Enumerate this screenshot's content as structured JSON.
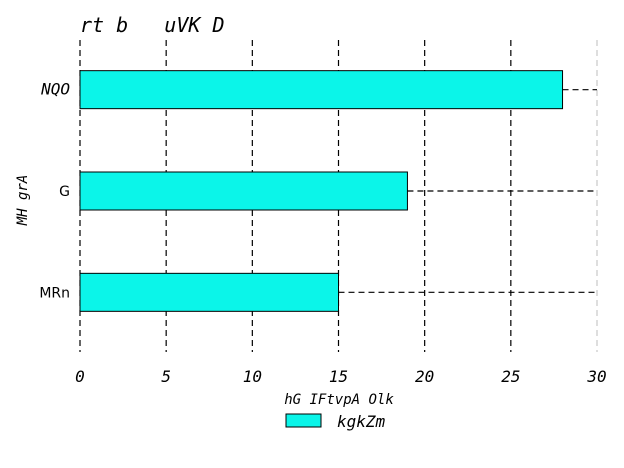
{
  "chart_data": {
    "type": "bar",
    "orientation": "horizontal",
    "title": "rt b   uVK D",
    "xlabel": "hG IFtvpA Olk",
    "ylabel": "MH grA",
    "categories": [
      "NQO",
      "G",
      "MRn"
    ],
    "series": [
      {
        "name": "kgkZm",
        "values": [
          28,
          19,
          15
        ]
      }
    ],
    "xlim": [
      0,
      30
    ],
    "xticks": [
      "0",
      "5",
      "10",
      "15",
      "20",
      "25",
      "30"
    ],
    "grid": true,
    "grid_style": "dashed",
    "legend_position": "bottom-center",
    "colors": {
      "bar_fill": "#0bf5e9",
      "bar_stroke": "#000000",
      "grid": "#000000"
    }
  }
}
